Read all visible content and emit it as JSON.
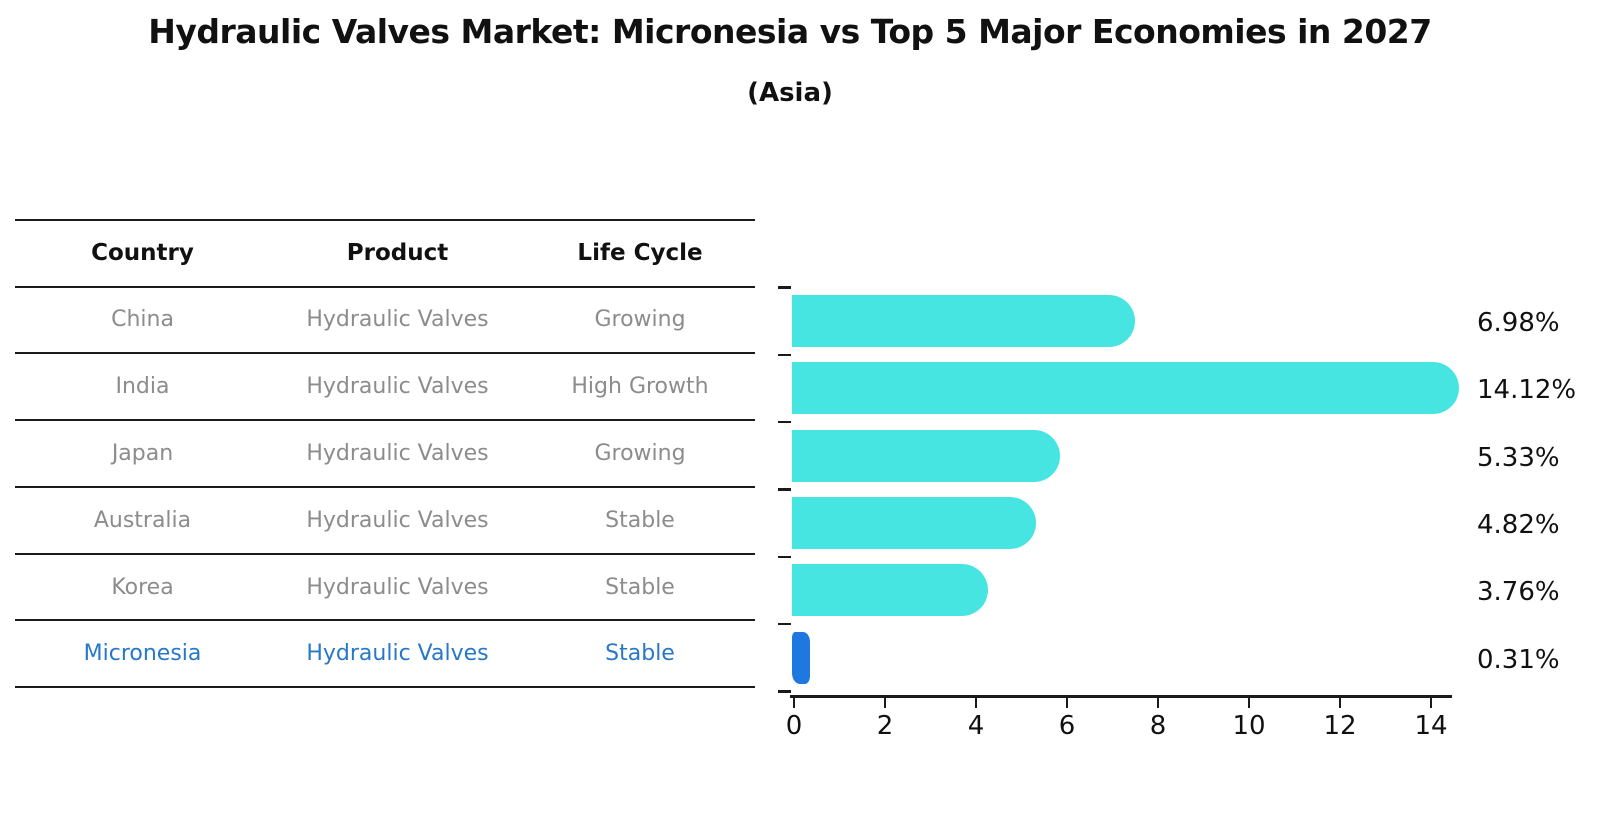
{
  "title": "Hydraulic Valves Market: Micronesia vs Top 5 Major Economies in 2027",
  "subtitle": "(Asia)",
  "table": {
    "headers": [
      "Country",
      "Product",
      "Life Cycle"
    ],
    "rows": [
      {
        "country": "China",
        "product": "Hydraulic Valves",
        "life_cycle": "Growing",
        "highlight": false
      },
      {
        "country": "India",
        "product": "Hydraulic Valves",
        "life_cycle": "High Growth",
        "highlight": false
      },
      {
        "country": "Japan",
        "product": "Hydraulic Valves",
        "life_cycle": "Growing",
        "highlight": false
      },
      {
        "country": "Australia",
        "product": "Hydraulic Valves",
        "life_cycle": "Stable",
        "highlight": false
      },
      {
        "country": "Korea",
        "product": "Hydraulic Valves",
        "life_cycle": "Stable",
        "highlight": false
      },
      {
        "country": "Micronesia",
        "product": "Hydraulic Valves",
        "life_cycle": "Stable",
        "highlight": true
      }
    ]
  },
  "chart_data": {
    "type": "bar",
    "orientation": "horizontal",
    "title": "Hydraulic Valves Market: Micronesia vs Top 5 Major Economies in 2027 (Asia)",
    "categories": [
      "China",
      "India",
      "Japan",
      "Australia",
      "Korea",
      "Micronesia"
    ],
    "values": [
      6.98,
      14.12,
      5.33,
      4.82,
      3.76,
      0.31
    ],
    "value_labels": [
      "6.98%",
      "14.12%",
      "5.33%",
      "4.82%",
      "3.76%",
      "0.31%"
    ],
    "x_ticks": [
      0,
      2,
      4,
      6,
      8,
      10,
      12,
      14
    ],
    "xlim": [
      0,
      14.92
    ],
    "xlabel": "",
    "ylabel": "",
    "grid": false,
    "legend": false,
    "bar_color": "#46e5e2",
    "highlight_color": "#1e78e0",
    "highlight_index": 5
  },
  "colors": {
    "header_text": "#111111",
    "row_text": "#8c8c8c",
    "highlight_text": "#2878c8",
    "axis_line": "#1a1a1a",
    "label_text": "#111111",
    "background": "#ffffff"
  }
}
